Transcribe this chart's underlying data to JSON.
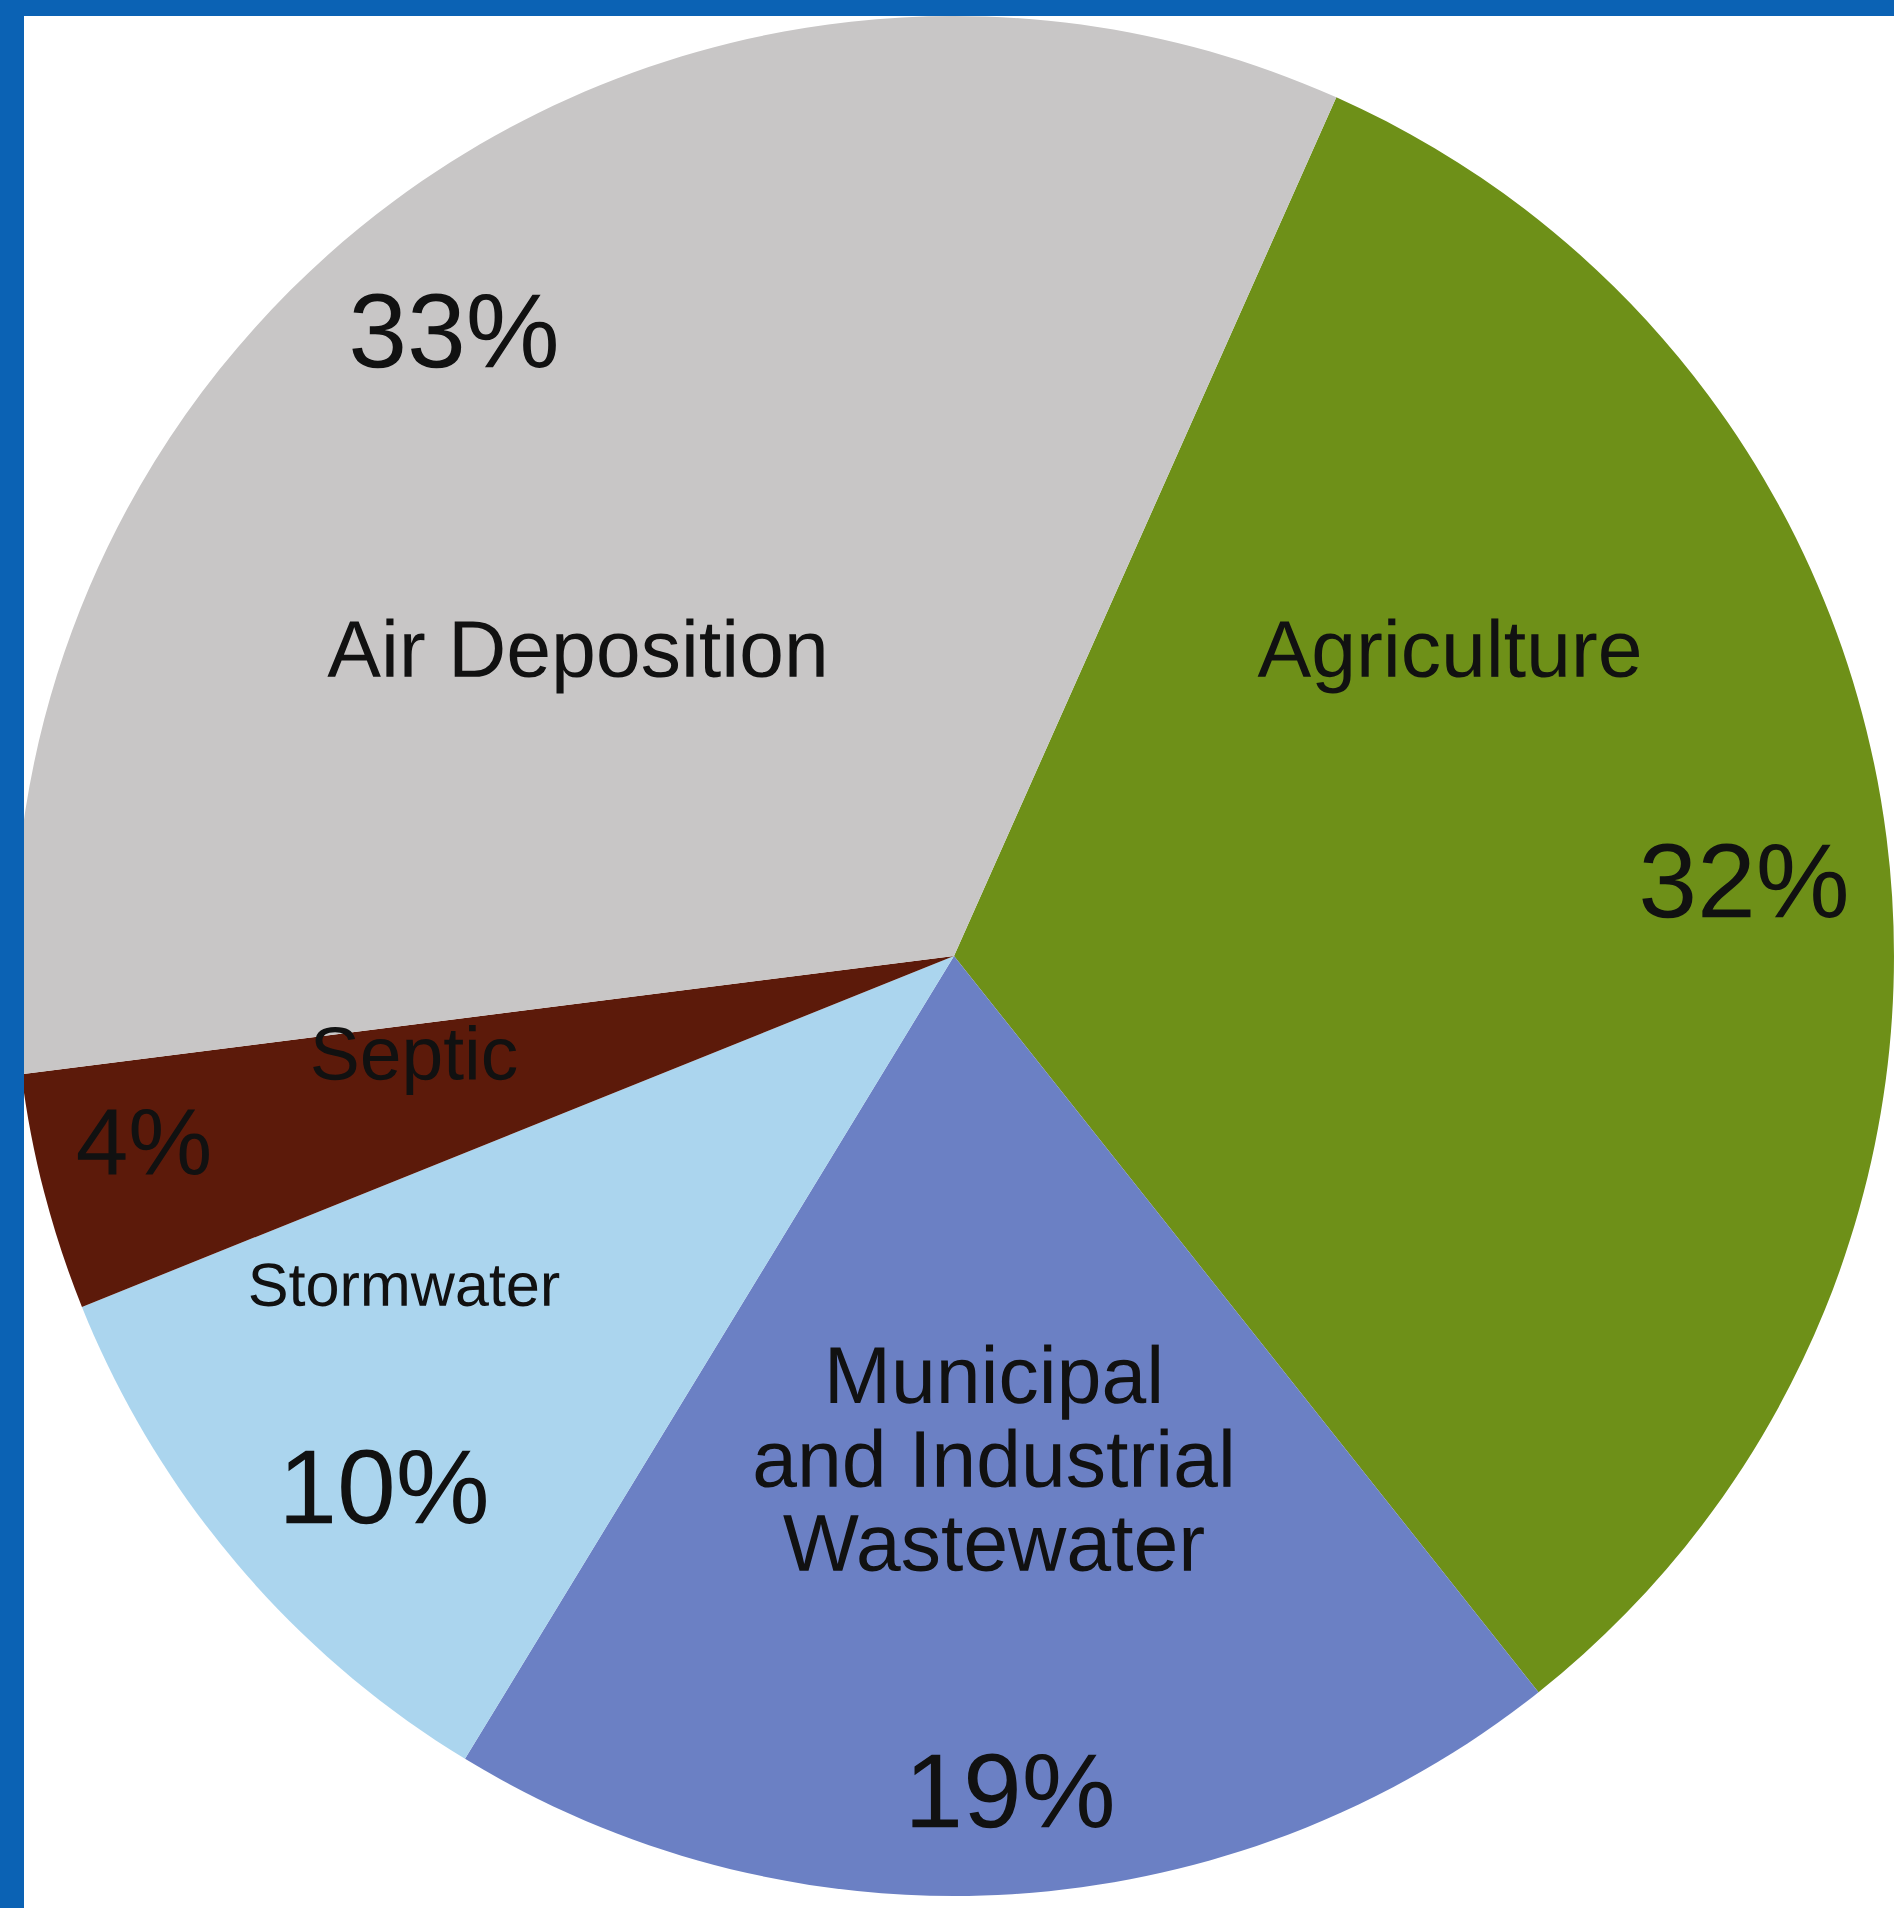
{
  "chart_data": {
    "type": "pie",
    "categories": [
      "Agriculture",
      "Municipal\nand Industrial\nWastewater",
      "Stormwater",
      "Septic",
      "Air Deposition"
    ],
    "values": [
      32,
      19,
      10,
      4,
      33
    ],
    "value_labels": [
      "32%",
      "19%",
      "10%",
      "4%",
      "33%"
    ],
    "colors": [
      "#6e9018",
      "#6b80c4",
      "#abd5ee",
      "#5c1a0a",
      "#c8c6c6"
    ],
    "legend": false
  }
}
